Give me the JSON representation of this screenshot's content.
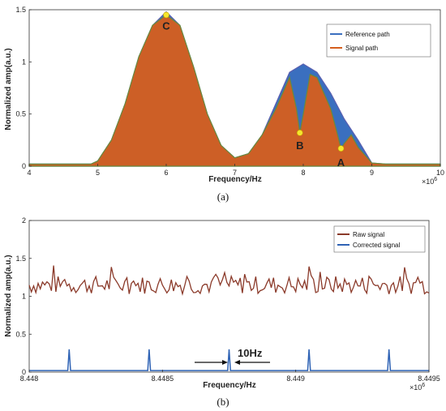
{
  "chart_data": [
    {
      "type": "area",
      "caption": "(a)",
      "xlabel": "Frequency/Hz",
      "ylabel": "Normalized amp(a.u.)",
      "x_exponent_label": "×10^6",
      "x_exponent_base": "×10",
      "x_exponent_power": "6",
      "xlim": [
        4,
        10
      ],
      "ylim": [
        0,
        1.5
      ],
      "xticks": [
        "4",
        "5",
        "6",
        "7",
        "8",
        "9",
        "10"
      ],
      "yticks": [
        "0",
        "0.5",
        "1",
        "1.5"
      ],
      "legend_position": "top-right",
      "grid": false,
      "series": [
        {
          "name": "Reference path",
          "color": "#3a6fbf",
          "x": [
            4.0,
            4.5,
            4.9,
            5.0,
            5.2,
            5.4,
            5.6,
            5.8,
            6.0,
            6.2,
            6.4,
            6.6,
            6.8,
            7.0,
            7.2,
            7.4,
            7.6,
            7.8,
            8.0,
            8.2,
            8.4,
            8.6,
            8.8,
            9.0,
            9.2,
            9.5,
            10.0
          ],
          "y": [
            0.02,
            0.02,
            0.02,
            0.05,
            0.25,
            0.6,
            1.05,
            1.35,
            1.48,
            1.35,
            0.95,
            0.5,
            0.2,
            0.08,
            0.12,
            0.3,
            0.6,
            0.9,
            0.98,
            0.9,
            0.7,
            0.45,
            0.25,
            0.03,
            0.02,
            0.02,
            0.02
          ]
        },
        {
          "name": "Signal path",
          "color": "#d55e1e",
          "x": [
            4.0,
            4.5,
            4.9,
            5.0,
            5.2,
            5.4,
            5.6,
            5.8,
            6.0,
            6.2,
            6.4,
            6.6,
            6.8,
            7.0,
            7.2,
            7.4,
            7.6,
            7.8,
            7.9,
            7.95,
            8.0,
            8.1,
            8.2,
            8.4,
            8.5,
            8.55,
            8.6,
            8.7,
            8.8,
            9.0,
            9.2,
            9.5,
            10.0
          ],
          "y": [
            0.02,
            0.02,
            0.02,
            0.05,
            0.25,
            0.6,
            1.05,
            1.35,
            1.45,
            1.35,
            0.95,
            0.5,
            0.2,
            0.08,
            0.12,
            0.3,
            0.55,
            0.85,
            0.55,
            0.32,
            0.5,
            0.88,
            0.85,
            0.55,
            0.3,
            0.17,
            0.22,
            0.3,
            0.18,
            0.03,
            0.02,
            0.02,
            0.02
          ]
        }
      ],
      "annotations": [
        {
          "label": "C",
          "x": 6.0,
          "y": 1.45
        },
        {
          "label": "B",
          "x": 7.95,
          "y": 0.32
        },
        {
          "label": "A",
          "x": 8.55,
          "y": 0.17
        }
      ]
    },
    {
      "type": "line",
      "caption": "(b)",
      "xlabel": "Frequency/Hz",
      "ylabel": "Normalized amp(a.u.)",
      "x_exponent_label": "×10^6",
      "x_exponent_base": "×10",
      "x_exponent_power": "6",
      "xlim": [
        8.448,
        8.4495
      ],
      "ylim": [
        0,
        2
      ],
      "xticks": [
        "8.448",
        "8.4485",
        "8.449",
        "8.4495"
      ],
      "yticks": [
        "0",
        "0.5",
        "1",
        "1.5",
        "2"
      ],
      "legend_position": "top-right",
      "grid": false,
      "annotation_text": "10Hz",
      "series": [
        {
          "name": "Raw signal",
          "color": "#8b3a2a",
          "baseline": 1.15,
          "amplitude": 0.12,
          "points": 180
        },
        {
          "name": "Corrected signal",
          "color": "#2f63b5",
          "baseline": 0.02,
          "peaks_x": [
            8.44815,
            8.44845,
            8.44875,
            8.44905,
            8.44935
          ],
          "peak_height": 0.3
        }
      ]
    }
  ]
}
